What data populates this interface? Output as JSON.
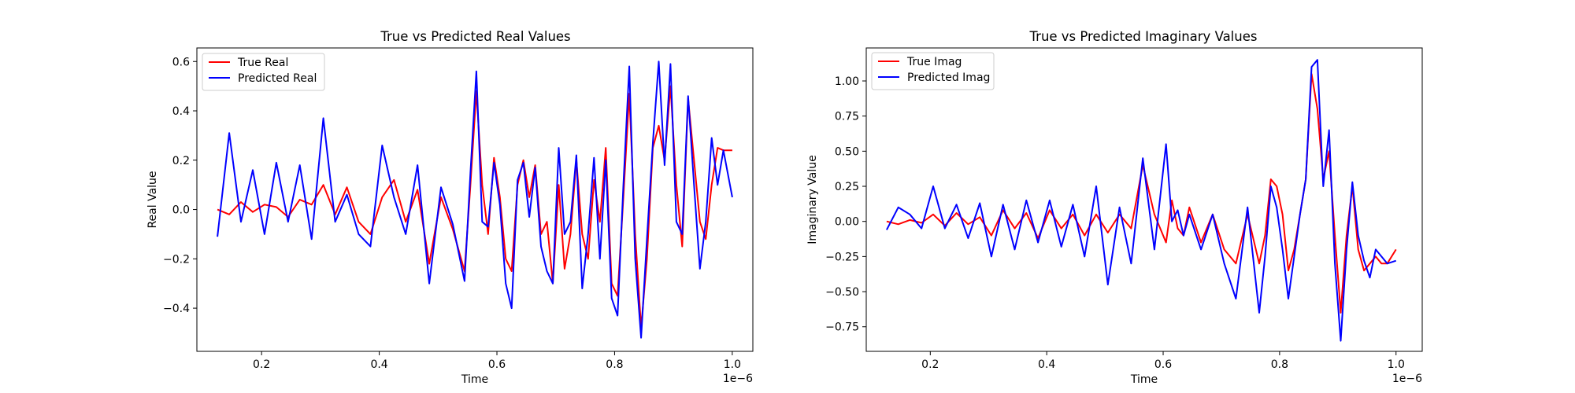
{
  "chart_data": [
    {
      "type": "line",
      "title": "True vs Predicted Real Values",
      "xlabel": "Time",
      "ylabel": "Real Value",
      "x_scale_label": "1e−6",
      "xlim": [
        0.09,
        1.035
      ],
      "ylim": [
        -0.575,
        0.655
      ],
      "xticks": [
        0.2,
        0.4,
        0.6,
        0.8,
        1.0
      ],
      "xtick_labels": [
        "0.2",
        "0.4",
        "0.6",
        "0.8",
        "1.0"
      ],
      "yticks": [
        -0.4,
        -0.2,
        0.0,
        0.2,
        0.4,
        0.6
      ],
      "ytick_labels": [
        "−0.4",
        "−0.2",
        "0.0",
        "0.2",
        "0.4",
        "0.6"
      ],
      "legend_position": "upper-left",
      "x": [
        0.125,
        0.145,
        0.165,
        0.185,
        0.205,
        0.225,
        0.245,
        0.265,
        0.285,
        0.305,
        0.325,
        0.345,
        0.365,
        0.385,
        0.405,
        0.425,
        0.445,
        0.465,
        0.485,
        0.505,
        0.525,
        0.545,
        0.555,
        0.565,
        0.575,
        0.585,
        0.595,
        0.605,
        0.615,
        0.625,
        0.635,
        0.645,
        0.655,
        0.665,
        0.675,
        0.685,
        0.695,
        0.705,
        0.715,
        0.725,
        0.735,
        0.745,
        0.755,
        0.765,
        0.775,
        0.785,
        0.795,
        0.805,
        0.815,
        0.825,
        0.835,
        0.845,
        0.855,
        0.865,
        0.875,
        0.885,
        0.895,
        0.905,
        0.915,
        0.925,
        0.935,
        0.945,
        0.955,
        0.965,
        0.975,
        0.985,
        1.0
      ],
      "series": [
        {
          "name": "True Real",
          "color": "#ff0000",
          "values": [
            0.0,
            -0.02,
            0.03,
            -0.01,
            0.02,
            0.01,
            -0.03,
            0.04,
            0.02,
            0.1,
            -0.02,
            0.09,
            -0.05,
            -0.1,
            0.05,
            0.12,
            -0.05,
            0.08,
            -0.22,
            0.05,
            -0.08,
            -0.25,
            0.1,
            0.48,
            0.1,
            -0.1,
            0.21,
            0.05,
            -0.2,
            -0.25,
            0.1,
            0.2,
            0.05,
            0.18,
            -0.1,
            -0.05,
            -0.3,
            0.1,
            -0.24,
            -0.1,
            0.2,
            -0.1,
            -0.2,
            0.12,
            -0.05,
            0.25,
            -0.3,
            -0.35,
            0.05,
            0.47,
            -0.1,
            -0.48,
            -0.2,
            0.25,
            0.34,
            0.2,
            0.5,
            0.1,
            -0.15,
            0.45,
            0.2,
            -0.05,
            -0.12,
            0.1,
            0.25,
            0.24,
            0.24
          ]
        },
        {
          "name": "Predicted Real",
          "color": "#0000ff",
          "values": [
            -0.11,
            0.31,
            -0.05,
            0.16,
            -0.1,
            0.19,
            -0.05,
            0.18,
            -0.12,
            0.37,
            -0.05,
            0.06,
            -0.1,
            -0.15,
            0.26,
            0.05,
            -0.1,
            0.18,
            -0.3,
            0.09,
            -0.06,
            -0.29,
            0.15,
            0.56,
            -0.05,
            -0.07,
            0.19,
            0.02,
            -0.3,
            -0.4,
            0.12,
            0.19,
            -0.03,
            0.17,
            -0.15,
            -0.25,
            -0.3,
            0.25,
            -0.1,
            -0.05,
            0.22,
            -0.32,
            -0.1,
            0.21,
            -0.2,
            0.2,
            -0.36,
            -0.43,
            0.1,
            0.58,
            -0.2,
            -0.52,
            -0.12,
            0.27,
            0.6,
            0.18,
            0.59,
            -0.05,
            -0.1,
            0.46,
            0.1,
            -0.24,
            -0.05,
            0.29,
            0.1,
            0.24,
            0.05
          ]
        }
      ]
    },
    {
      "type": "line",
      "title": "True vs Predicted Imaginary Values",
      "xlabel": "Time",
      "ylabel": "Imaginary Value",
      "x_scale_label": "1e−6",
      "xlim": [
        0.09,
        1.045
      ],
      "ylim": [
        -0.925,
        1.235
      ],
      "xticks": [
        0.2,
        0.4,
        0.6,
        0.8,
        1.0
      ],
      "xtick_labels": [
        "0.2",
        "0.4",
        "0.6",
        "0.8",
        "1.0"
      ],
      "yticks": [
        -0.75,
        -0.5,
        -0.25,
        0.0,
        0.25,
        0.5,
        0.75,
        1.0
      ],
      "ytick_labels": [
        "−0.75",
        "−0.50",
        "−0.25",
        "0.00",
        "0.25",
        "0.50",
        "0.75",
        "1.00"
      ],
      "legend_position": "upper-left",
      "x": [
        0.125,
        0.145,
        0.165,
        0.185,
        0.205,
        0.225,
        0.245,
        0.265,
        0.285,
        0.305,
        0.325,
        0.345,
        0.365,
        0.385,
        0.405,
        0.425,
        0.445,
        0.465,
        0.485,
        0.505,
        0.525,
        0.545,
        0.565,
        0.585,
        0.605,
        0.615,
        0.625,
        0.635,
        0.645,
        0.665,
        0.685,
        0.705,
        0.725,
        0.745,
        0.765,
        0.775,
        0.785,
        0.795,
        0.805,
        0.815,
        0.825,
        0.835,
        0.845,
        0.855,
        0.865,
        0.875,
        0.885,
        0.895,
        0.905,
        0.915,
        0.925,
        0.935,
        0.945,
        0.955,
        0.965,
        0.975,
        0.985,
        1.0
      ],
      "series": [
        {
          "name": "True Imag",
          "color": "#ff0000",
          "values": [
            0.0,
            -0.02,
            0.01,
            -0.01,
            0.05,
            -0.03,
            0.06,
            -0.02,
            0.03,
            -0.1,
            0.08,
            -0.05,
            0.06,
            -0.12,
            0.08,
            -0.05,
            0.05,
            -0.1,
            0.05,
            -0.08,
            0.05,
            -0.05,
            0.4,
            0.05,
            -0.15,
            0.15,
            -0.05,
            -0.1,
            0.1,
            -0.15,
            0.05,
            -0.2,
            -0.3,
            0.05,
            -0.3,
            -0.1,
            0.3,
            0.25,
            0.05,
            -0.35,
            -0.2,
            0.05,
            0.3,
            1.05,
            0.8,
            0.3,
            0.5,
            -0.1,
            -0.65,
            -0.1,
            0.25,
            -0.2,
            -0.35,
            -0.3,
            -0.25,
            -0.3,
            -0.3,
            -0.2
          ]
        },
        {
          "name": "Predicted Imag",
          "color": "#0000ff",
          "values": [
            -0.06,
            0.1,
            0.05,
            -0.05,
            0.25,
            -0.05,
            0.12,
            -0.12,
            0.13,
            -0.25,
            0.12,
            -0.2,
            0.15,
            -0.15,
            0.15,
            -0.18,
            0.12,
            -0.25,
            0.25,
            -0.45,
            0.1,
            -0.3,
            0.45,
            -0.2,
            0.55,
            0.0,
            0.08,
            -0.1,
            0.05,
            -0.2,
            0.05,
            -0.3,
            -0.55,
            0.1,
            -0.65,
            -0.25,
            0.25,
            0.1,
            -0.2,
            -0.55,
            -0.25,
            0.05,
            0.3,
            1.1,
            1.15,
            0.25,
            0.65,
            -0.3,
            -0.85,
            -0.2,
            0.28,
            -0.1,
            -0.28,
            -0.4,
            -0.2,
            -0.25,
            -0.3,
            -0.28
          ]
        }
      ]
    }
  ]
}
